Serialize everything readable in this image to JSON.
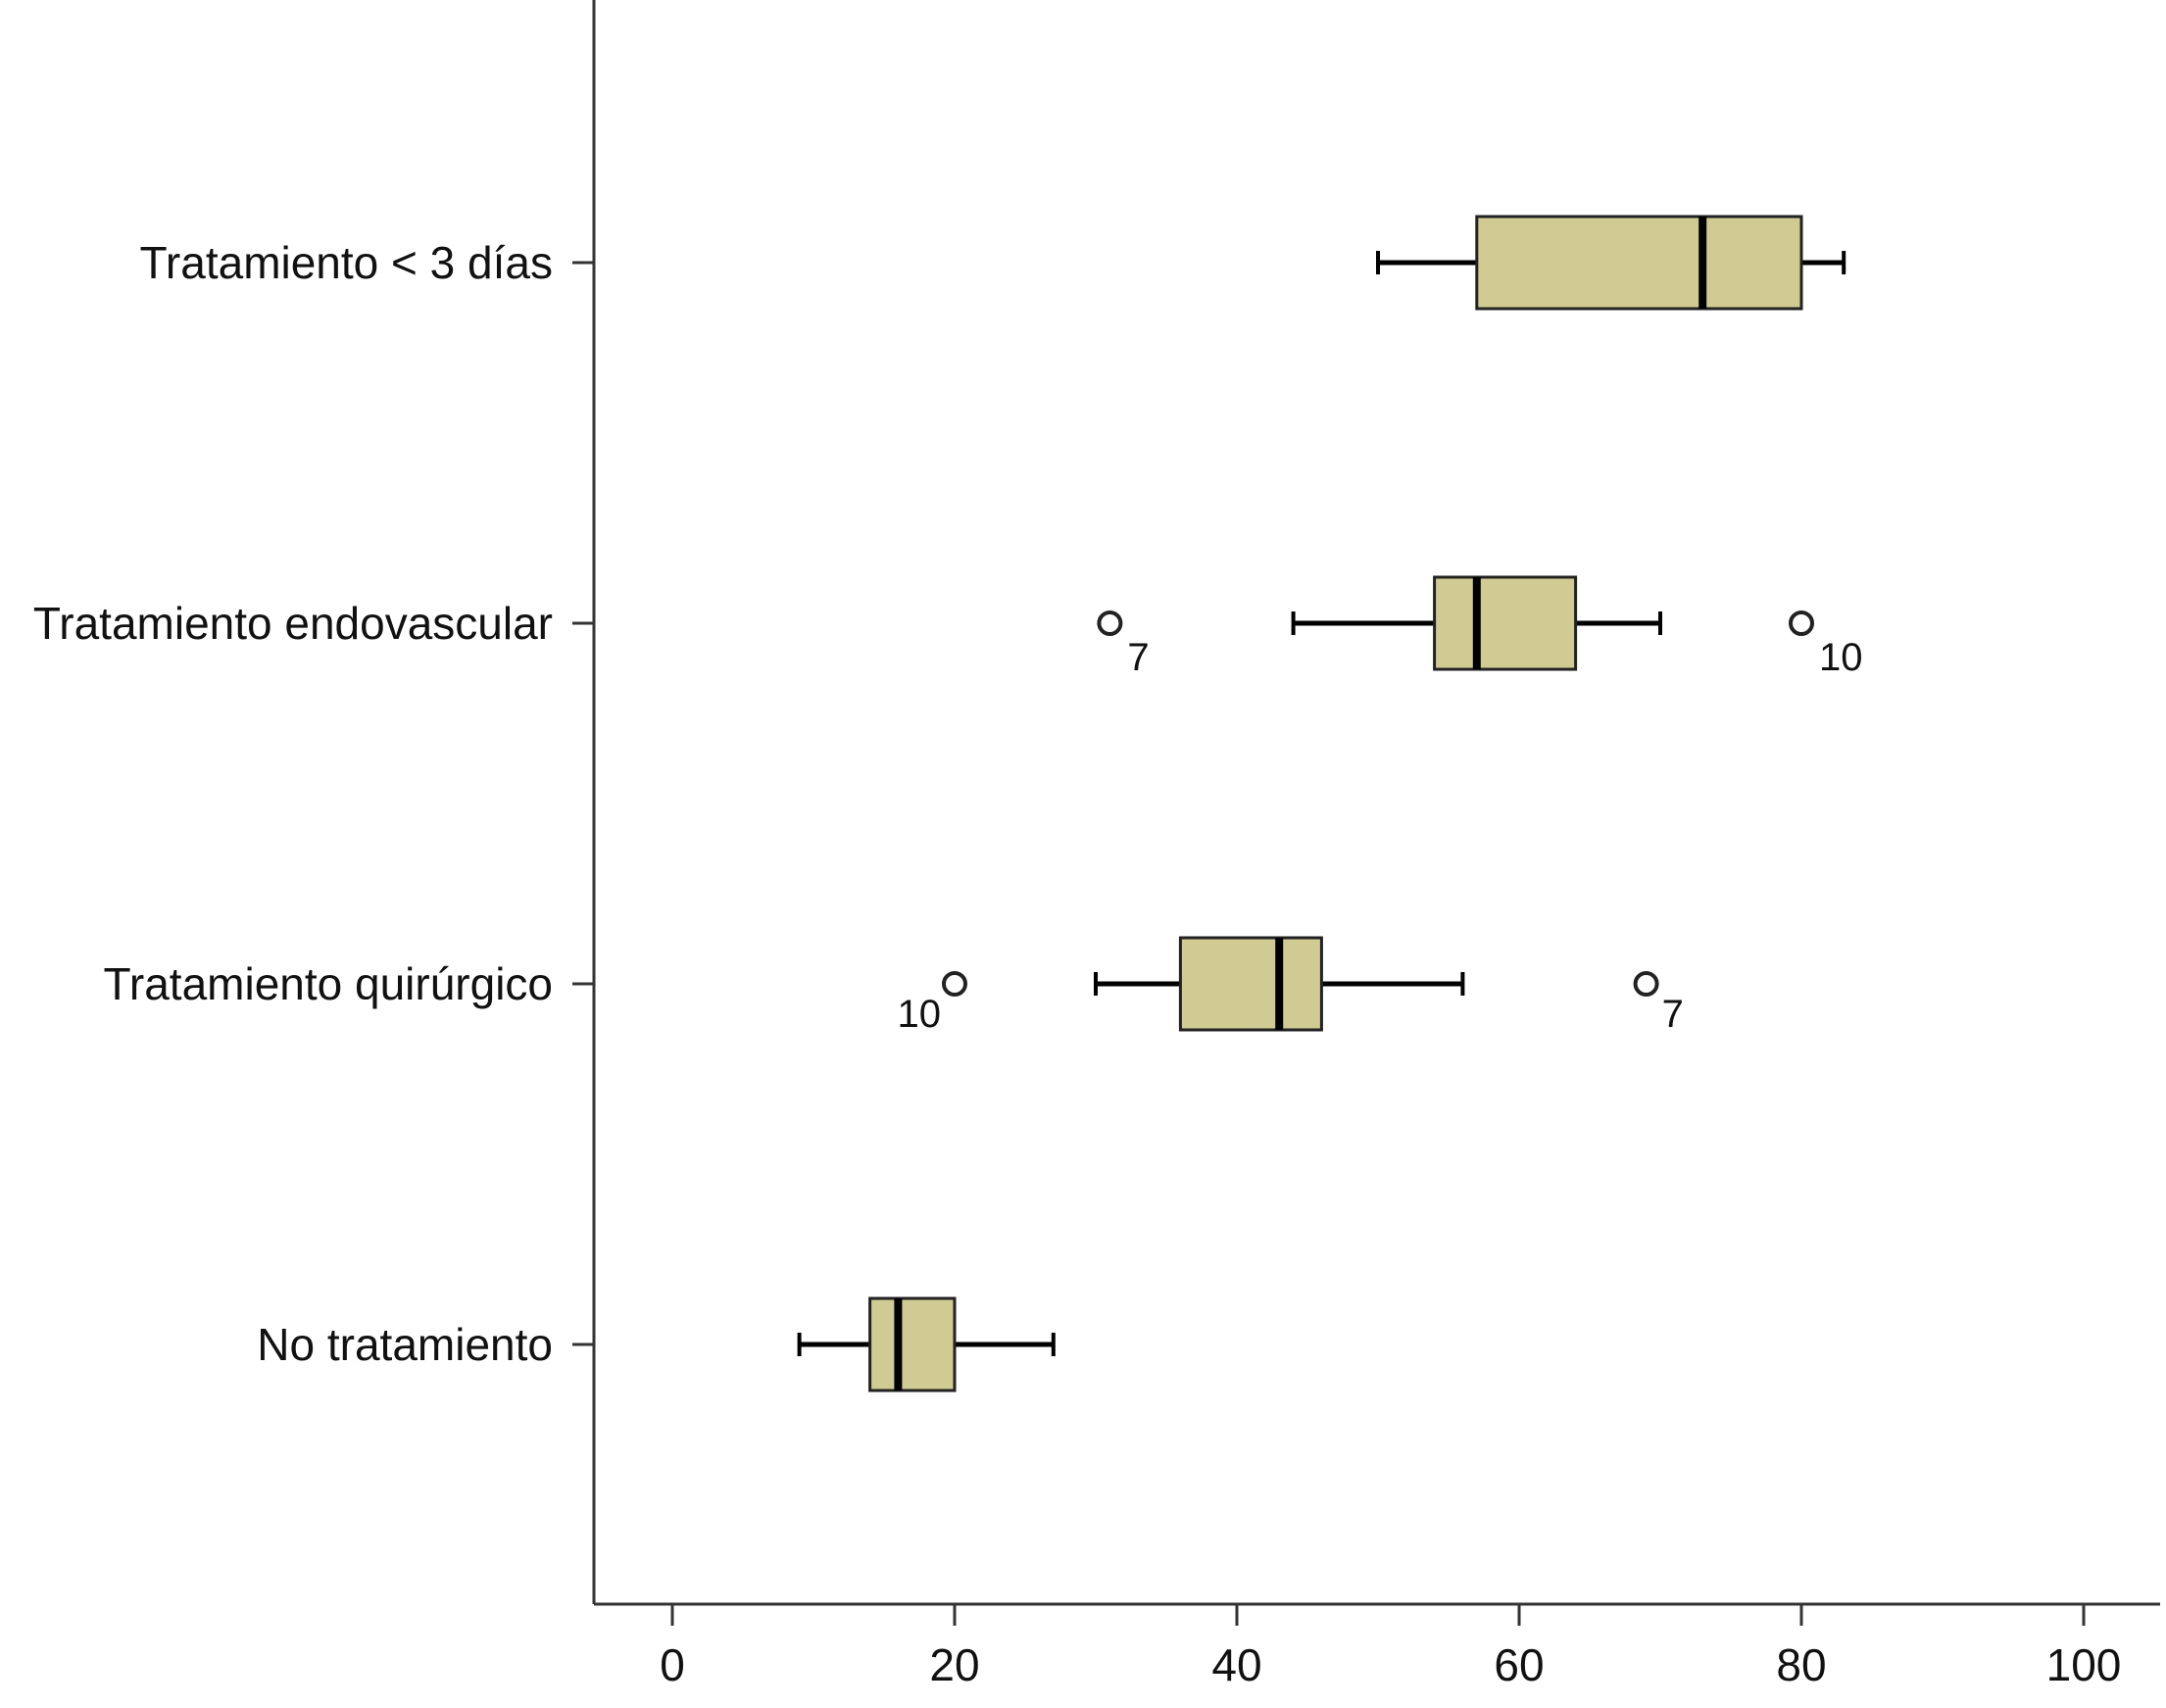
{
  "chart_data": {
    "type": "boxplot",
    "orientation": "horizontal",
    "title": "",
    "xlabel": "",
    "ylabel": "",
    "xlim": [
      -5,
      105
    ],
    "xticks": [
      0,
      20,
      40,
      60,
      80,
      100
    ],
    "xtick_labels": [
      "0",
      "20",
      "40",
      "60",
      "80",
      "100"
    ],
    "grid": false,
    "box_color": "#CFCB93",
    "line_color": "#000000",
    "categories": [
      "Tratamiento < 3 días",
      "Tratamiento endovascular",
      "Tratamiento quirúrgico",
      "No tratamiento"
    ],
    "boxes": [
      {
        "category": "Tratamiento < 3 días",
        "whisker_low": 50,
        "q1": 57,
        "median": 73,
        "q3": 80,
        "whisker_high": 83,
        "outliers": []
      },
      {
        "category": "Tratamiento endovascular",
        "whisker_low": 44,
        "q1": 54,
        "median": 57,
        "q3": 64,
        "whisker_high": 70,
        "outliers": [
          {
            "value": 31,
            "label": "7"
          },
          {
            "value": 80,
            "label": "10"
          }
        ]
      },
      {
        "category": "Tratamiento quirúrgico",
        "whisker_low": 30,
        "q1": 36,
        "median": 43,
        "q3": 46,
        "whisker_high": 56,
        "outliers": [
          {
            "value": 20,
            "label": "10"
          },
          {
            "value": 69,
            "label": "7"
          }
        ]
      },
      {
        "category": "No tratamiento",
        "whisker_low": 9,
        "q1": 14,
        "median": 16,
        "q3": 20,
        "whisker_high": 27,
        "outliers": []
      }
    ]
  }
}
